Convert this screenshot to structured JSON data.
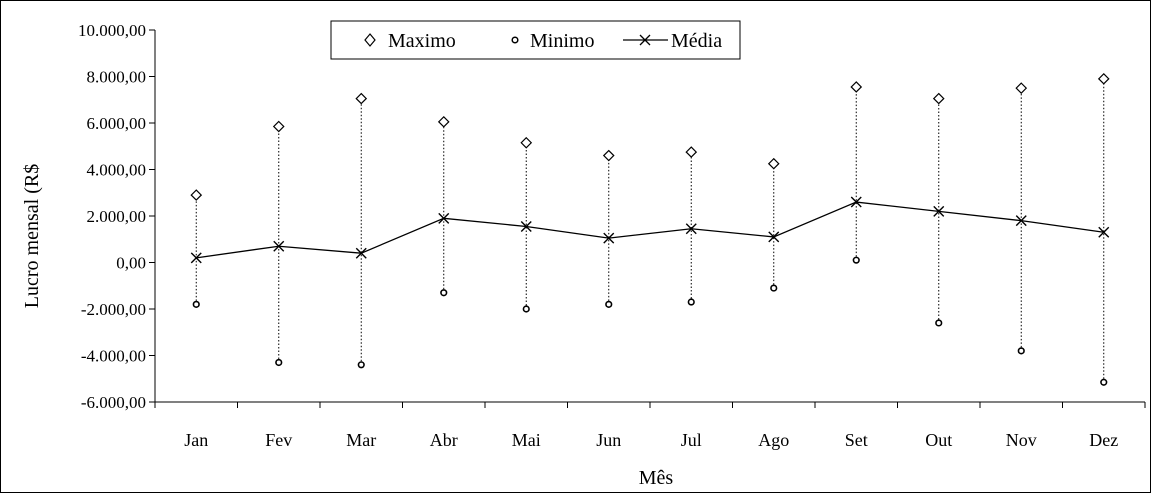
{
  "chart_data": {
    "type": "line",
    "title": "",
    "xlabel": "Mês",
    "ylabel": "Lucro mensal (R$",
    "categories": [
      "Jan",
      "Fev",
      "Mar",
      "Abr",
      "Mai",
      "Jun",
      "Jul",
      "Ago",
      "Set",
      "Out",
      "Nov",
      "Dez"
    ],
    "ylim": [
      -6000,
      10000
    ],
    "yticks": [
      -6000,
      -4000,
      -2000,
      0,
      2000,
      4000,
      6000,
      8000,
      10000
    ],
    "ytick_labels": [
      "-6.000,00",
      "-4.000,00",
      "-2.000,00",
      "0,00",
      "2.000,00",
      "4.000,00",
      "6.000,00",
      "8.000,00",
      "10.000,00"
    ],
    "grid": false,
    "legend_position": "top-center",
    "series": [
      {
        "name": "Maximo",
        "marker": "diamond",
        "values": [
          2900,
          5850,
          7050,
          6050,
          5150,
          4600,
          4750,
          4250,
          7550,
          7050,
          7500,
          7900
        ]
      },
      {
        "name": "Minimo",
        "marker": "circle",
        "values": [
          -1800,
          -4300,
          -4400,
          -1300,
          -2000,
          -1800,
          -1700,
          -1100,
          100,
          -2600,
          -3800,
          -5150
        ]
      },
      {
        "name": "Média",
        "marker": "x",
        "line": true,
        "values": [
          200,
          700,
          400,
          1900,
          1550,
          1050,
          1450,
          1100,
          2600,
          2200,
          1800,
          1300
        ]
      }
    ],
    "range_lines": "dotted vertical lines from Minimo to Maximo per month"
  }
}
